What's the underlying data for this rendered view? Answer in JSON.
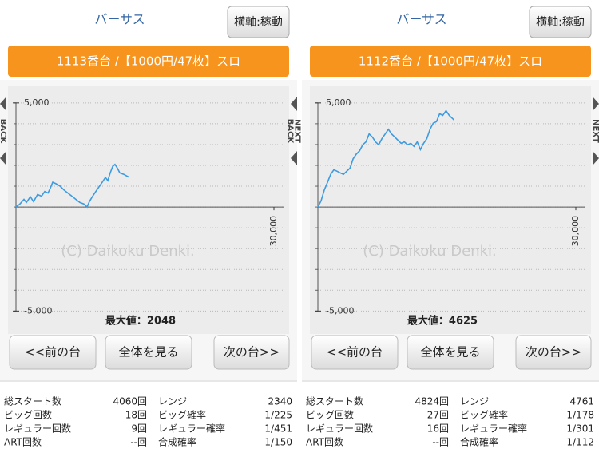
{
  "panels": [
    {
      "title": "バーサス",
      "axis_button": "横軸:稼動",
      "machine": "1113番台 /【1000円/47枚】スロ",
      "left_labels": [
        "BACK"
      ],
      "chart": {
        "type": "line",
        "color": "#3d9be0",
        "xlim": [
          0,
          30000
        ],
        "xticks": [
          {
            "value": 30000,
            "label": "30,000"
          }
        ],
        "ylim": [
          -6100,
          5800
        ],
        "yticks": [
          {
            "value": 5000,
            "label": "5,000"
          },
          {
            "value": -5000,
            "label": "-5,000"
          }
        ],
        "watermark": "(C) Daikoku Denki.",
        "max_label": "最大値：2048",
        "x": [
          0,
          460,
          930,
          1210,
          1670,
          2040,
          2510,
          2970,
          3340,
          3720,
          3990,
          4270,
          4640,
          5110,
          5570,
          6040,
          6500,
          6970,
          7430,
          7890,
          8270,
          8540,
          8920,
          9290,
          9660,
          10030,
          10400,
          10680,
          10960,
          11240,
          11510,
          11800,
          12070,
          12540,
          13190
        ],
        "values": [
          0,
          150,
          370,
          220,
          490,
          260,
          600,
          520,
          750,
          670,
          900,
          1190,
          1120,
          1010,
          820,
          670,
          520,
          370,
          220,
          150,
          0,
          260,
          520,
          750,
          970,
          1190,
          1420,
          1270,
          1640,
          1940,
          2048,
          1870,
          1640,
          1570,
          1420
        ]
      },
      "nav": [
        "<<前の台",
        "全体を見る",
        "次の台>>"
      ],
      "stats": [
        [
          "総スタート数",
          "4060回",
          "レンジ",
          "2340"
        ],
        [
          "ビッグ回数",
          "18回",
          "ビッグ確率",
          "1/225"
        ],
        [
          "レギュラー回数",
          "9回",
          "レギュラー確率",
          "1/451"
        ],
        [
          "ART回数",
          "--回",
          "合成確率",
          "1/150"
        ]
      ]
    },
    {
      "title": "バーサス",
      "axis_button": "横軸:稼動",
      "machine": "1112番台 /【1000円/47枚】スロ",
      "left_labels": [
        "BACK",
        "NEXT"
      ],
      "right_labels": [
        "NEXT"
      ],
      "chart": {
        "type": "line",
        "color": "#3d9be0",
        "xlim": [
          0,
          30000
        ],
        "xticks": [
          {
            "value": 30000,
            "label": "30,000"
          }
        ],
        "ylim": [
          -6100,
          5800
        ],
        "yticks": [
          {
            "value": 5000,
            "label": "5,000"
          },
          {
            "value": -5000,
            "label": "-5,000"
          }
        ],
        "watermark": "(C) Daikoku Denki.",
        "max_label": "最大値：4625",
        "x": [
          0,
          370,
          750,
          1120,
          1490,
          1860,
          2240,
          2610,
          2980,
          3350,
          3730,
          4100,
          4470,
          4840,
          5220,
          5590,
          5960,
          6340,
          6710,
          7080,
          7450,
          7830,
          8200,
          8570,
          8940,
          9320,
          9690,
          10060,
          10430,
          10810,
          11180,
          11550,
          11930,
          12300,
          12670,
          13040,
          13420,
          13790,
          14160,
          14530,
          14910,
          15280,
          15840
        ],
        "values": [
          0,
          300,
          820,
          1190,
          1570,
          1790,
          1720,
          1640,
          1570,
          1720,
          1870,
          2310,
          2540,
          2690,
          2990,
          3130,
          3510,
          3360,
          3130,
          2990,
          3280,
          3510,
          3730,
          3510,
          3360,
          3210,
          3060,
          3130,
          2990,
          3060,
          2910,
          3130,
          2760,
          3060,
          3280,
          3730,
          4030,
          4100,
          4480,
          4400,
          4625,
          4400,
          4180
        ]
      },
      "nav": [
        "<<前の台",
        "全体を見る",
        "次の台>>"
      ],
      "stats": [
        [
          "総スタート数",
          "4824回",
          "レンジ",
          "4761"
        ],
        [
          "ビッグ回数",
          "27回",
          "ビッグ確率",
          "1/178"
        ],
        [
          "レギュラー回数",
          "16回",
          "レギュラー確率",
          "1/301"
        ],
        [
          "ART回数",
          "--回",
          "合成確率",
          "1/112"
        ]
      ]
    }
  ]
}
